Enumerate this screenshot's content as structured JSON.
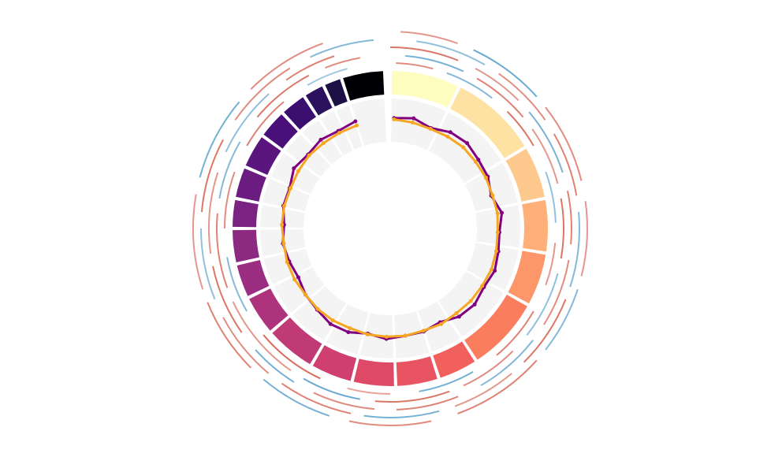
{
  "chart_data": {
    "type": "circos",
    "segments": {
      "sizes": [
        26,
        33,
        20,
        20,
        20,
        28,
        15,
        16,
        16,
        16,
        19,
        15,
        13,
        13,
        11,
        12,
        13,
        11,
        10,
        8,
        7,
        16
      ],
      "colors": [
        "#fcfdbf",
        "#fde2a3",
        "#fec98d",
        "#feb078",
        "#fd9668",
        "#fa7d5e",
        "#f1605d",
        "#e95462",
        "#de4968",
        "#cf4070",
        "#c03a76",
        "#ad347c",
        "#9b2e81",
        "#8c2981",
        "#7b2382",
        "#6a1c81",
        "#5a167e",
        "#4a1079",
        "#3b0f70",
        "#2c115f",
        "#1c1044",
        "#000004"
      ]
    },
    "scatter": {
      "ylim": [
        0,
        1
      ],
      "series": [
        {
          "color": "#800080",
          "x": [
            2,
            12,
            22,
            32,
            42,
            52,
            62,
            72,
            82,
            92,
            102,
            112,
            122,
            132,
            142,
            152,
            162,
            172,
            182,
            192,
            202,
            212,
            222,
            232,
            242,
            252,
            262,
            272,
            282,
            292,
            302,
            312,
            322,
            332,
            342
          ],
          "values": [
            0.55,
            0.6,
            0.5,
            0.62,
            0.65,
            0.58,
            0.55,
            0.45,
            0.6,
            0.52,
            0.55,
            0.6,
            0.55,
            0.62,
            0.58,
            0.45,
            0.5,
            0.5,
            0.55,
            0.48,
            0.58,
            0.6,
            0.52,
            0.48,
            0.4,
            0.45,
            0.5,
            0.45,
            0.52,
            0.5,
            0.62,
            0.55,
            0.6,
            0.55,
            0.6
          ]
        },
        {
          "color": "#f5a623",
          "x": [
            2,
            12,
            22,
            32,
            42,
            52,
            62,
            72,
            82,
            92,
            102,
            112,
            122,
            132,
            142,
            152,
            162,
            172,
            182,
            192,
            202,
            212,
            222,
            232,
            242,
            252,
            262,
            272,
            282,
            292,
            302,
            312,
            322,
            332,
            342
          ],
          "values": [
            0.52,
            0.5,
            0.48,
            0.5,
            0.52,
            0.5,
            0.5,
            0.48,
            0.5,
            0.48,
            0.5,
            0.52,
            0.5,
            0.5,
            0.48,
            0.5,
            0.48,
            0.5,
            0.5,
            0.5,
            0.48,
            0.5,
            0.5,
            0.48,
            0.5,
            0.5,
            0.48,
            0.5,
            0.5,
            0.48,
            0.5,
            0.52,
            0.5,
            0.5,
            0.5
          ]
        }
      ]
    },
    "heatmap": {
      "clim": [
        -1,
        1
      ],
      "rows": [
        {
          "starts": [
            2,
            20,
            45,
            70,
            95,
            120,
            150,
            180,
            205,
            240,
            270,
            300,
            330
          ],
          "ends": [
            15,
            38,
            60,
            88,
            110,
            140,
            170,
            195,
            230,
            260,
            290,
            320,
            345
          ],
          "values": [
            0.6,
            -0.5,
            0.8,
            -0.4,
            0.5,
            0.7,
            -0.6,
            0.4,
            0.9,
            -0.5,
            0.6,
            0.7,
            -0.3
          ]
        },
        {
          "starts": [
            5,
            30,
            55,
            80,
            105,
            135,
            160,
            190,
            215,
            250,
            280,
            310,
            338
          ],
          "ends": [
            25,
            50,
            75,
            100,
            128,
            155,
            185,
            210,
            245,
            275,
            300,
            332,
            350
          ],
          "values": [
            -0.6,
            0.7,
            0.5,
            0.8,
            -0.4,
            0.6,
            0.8,
            -0.7,
            0.5,
            0.7,
            -0.5,
            0.8,
            0.6
          ]
        },
        {
          "starts": [
            0,
            28,
            50,
            78,
            100,
            128,
            158,
            185,
            212,
            235,
            262,
            295,
            325
          ],
          "ends": [
            22,
            45,
            72,
            95,
            122,
            150,
            178,
            205,
            228,
            258,
            288,
            318,
            342
          ],
          "values": [
            0.8,
            0.5,
            -0.6,
            0.7,
            0.6,
            -0.5,
            0.7,
            0.6,
            -0.6,
            0.8,
            0.5,
            -0.4,
            0.7
          ]
        },
        {
          "starts": [
            8,
            35,
            60,
            85,
            112,
            140,
            165,
            192,
            220,
            248,
            275,
            305,
            335
          ],
          "ends": [
            30,
            55,
            80,
            108,
            135,
            160,
            188,
            215,
            242,
            270,
            298,
            328,
            355
          ],
          "values": [
            -0.4,
            0.6,
            0.7,
            -0.5,
            0.8,
            0.5,
            -0.6,
            0.7,
            0.6,
            -0.4,
            0.8,
            0.6,
            -0.5
          ]
        },
        {
          "starts": [
            3,
            25,
            52,
            82,
            108,
            132,
            168,
            198,
            225,
            252,
            285,
            315
          ],
          "ends": [
            20,
            48,
            76,
            104,
            128,
            160,
            192,
            220,
            248,
            280,
            310,
            340
          ],
          "values": [
            0.5,
            -0.7,
            0.6,
            0.5,
            -0.5,
            0.7,
            0.6,
            -0.6,
            0.7,
            0.5,
            -0.6,
            0.6
          ]
        }
      ]
    }
  }
}
